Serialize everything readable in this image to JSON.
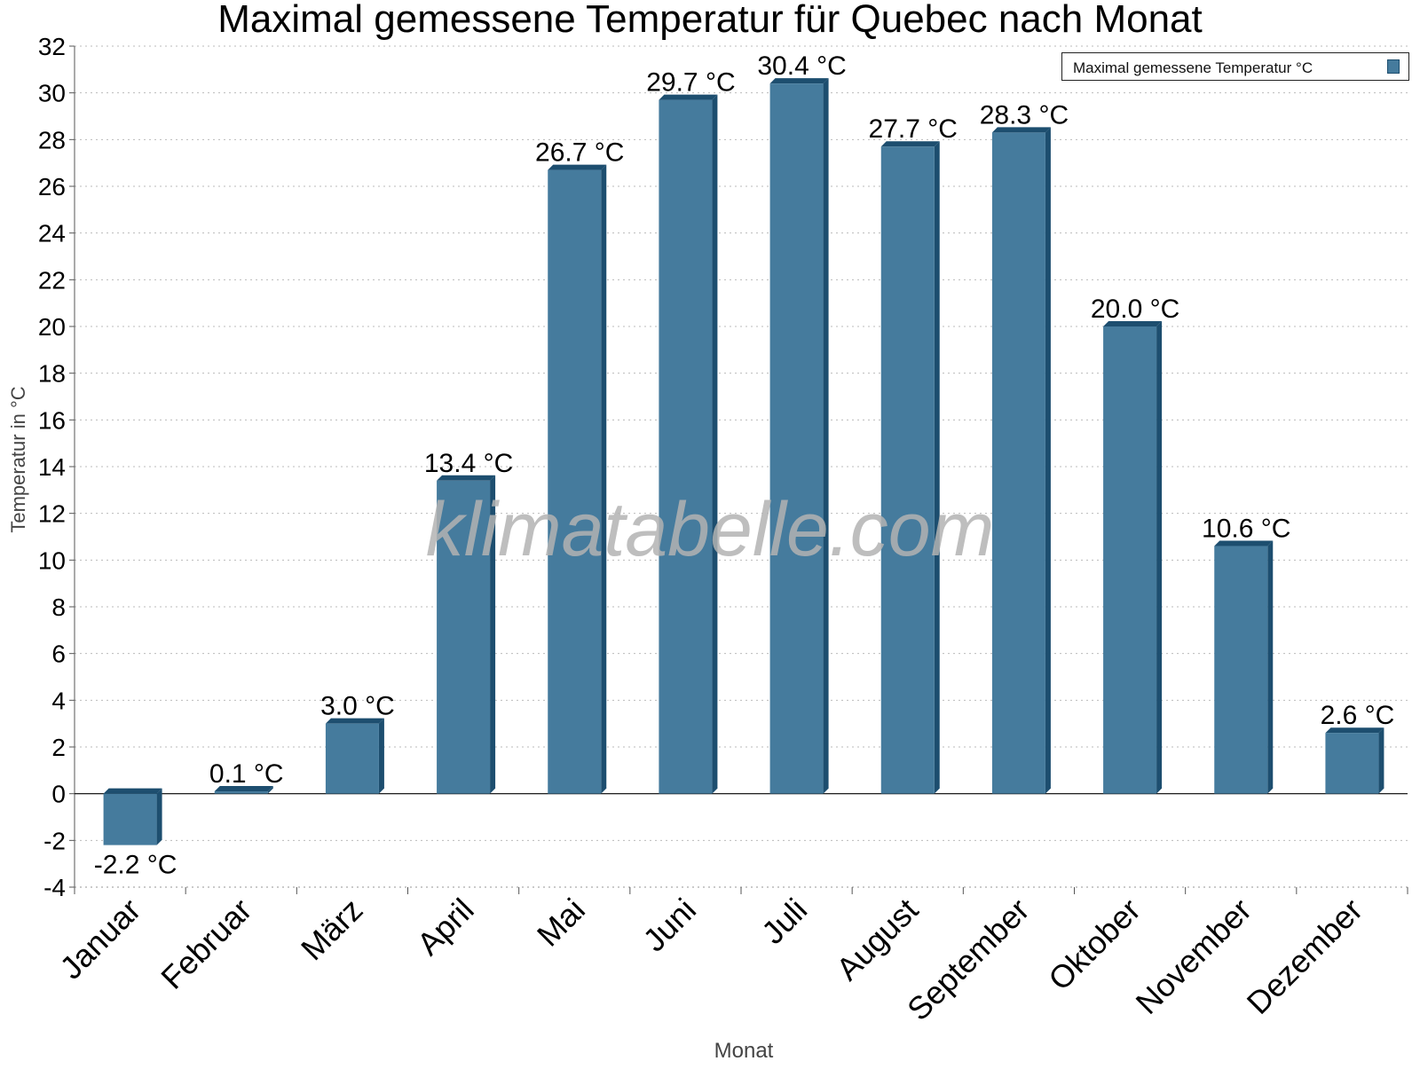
{
  "chart_data": {
    "type": "bar",
    "title": "Maximal gemessene Temperatur für Quebec nach Monat",
    "xlabel": "Monat",
    "ylabel": "Temperatur in °C",
    "categories": [
      "Januar",
      "Februar",
      "März",
      "April",
      "Mai",
      "Juni",
      "Juli",
      "August",
      "September",
      "Oktober",
      "November",
      "Dezember"
    ],
    "series": [
      {
        "name": "Maximal gemessene Temperatur °C",
        "values": [
          -2.2,
          0.1,
          3.0,
          13.4,
          26.7,
          29.7,
          30.4,
          27.7,
          28.3,
          20.0,
          10.6,
          2.6
        ],
        "labels": [
          "-2.2 °C",
          "0.1 °C",
          "3.0 °C",
          "13.4 °C",
          "26.7 °C",
          "29.7 °C",
          "30.4 °C",
          "27.7 °C",
          "28.3 °C",
          "20.0 °C",
          "10.6 °C",
          "2.6 °C"
        ]
      }
    ],
    "ylim": [
      -4,
      32
    ],
    "yticks": [
      -4,
      -2,
      0,
      2,
      4,
      6,
      8,
      10,
      12,
      14,
      16,
      18,
      20,
      22,
      24,
      26,
      28,
      30,
      32
    ],
    "grid": true,
    "legend_position": "top-right",
    "colors": {
      "bar": "#457b9d",
      "bar_side": "#1d4e6f",
      "grid": "#bbbbbb",
      "watermark": "#b3b3b3"
    }
  },
  "watermark": "klimatabelle.com"
}
